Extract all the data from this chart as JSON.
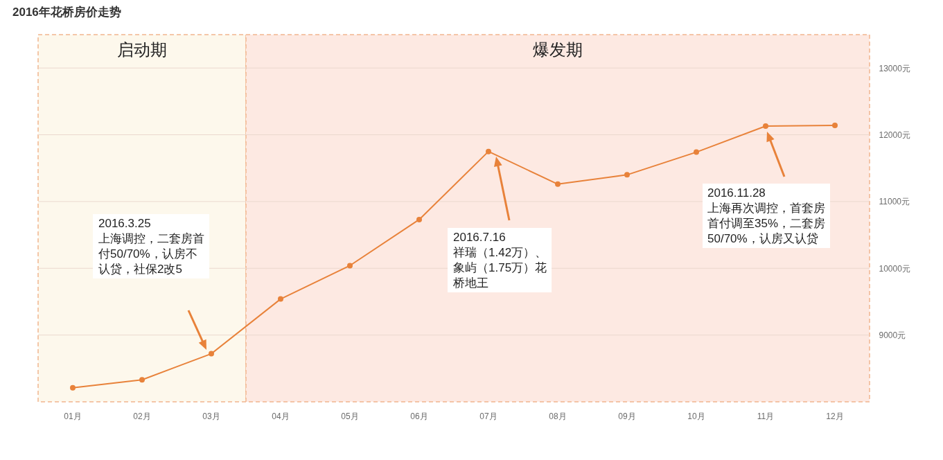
{
  "chart_data": {
    "type": "line",
    "title": "2016年花桥房价走势",
    "categories": [
      "01月",
      "02月",
      "03月",
      "04月",
      "05月",
      "06月",
      "07月",
      "08月",
      "09月",
      "10月",
      "11月",
      "12月"
    ],
    "values": [
      8210,
      8330,
      8720,
      9540,
      10040,
      10730,
      11750,
      11260,
      11400,
      11740,
      12130,
      12140
    ],
    "color": "#e8823a",
    "marker": "circle",
    "grid": "y",
    "ylim": [
      8000,
      13500
    ],
    "yticks": [
      {
        "value": 9000,
        "label": "9000元"
      },
      {
        "value": 10000,
        "label": "10000元"
      },
      {
        "value": 11000,
        "label": "11000元"
      },
      {
        "value": 12000,
        "label": "12000元"
      },
      {
        "value": 13000,
        "label": "13000元"
      }
    ],
    "bands": [
      {
        "axis": "x",
        "from": "01月",
        "to": "03月",
        "label": "启动期",
        "color": "#fdf8ec"
      },
      {
        "axis": "x",
        "from": "04月",
        "to": "12月",
        "label": "爆发期",
        "color": "#fde9e2"
      }
    ],
    "annotations": [
      "2016.3.25\n上海调控，二套房首付50/70%，认房不认贷，社保2改5",
      "2016.7.16\n祥瑞（1.42万）、象屿（1.75万）花桥地王",
      "2016.11.28\n上海再次调控，首套房首付调至35%，二套房50/70%，认房又认贷"
    ]
  }
}
